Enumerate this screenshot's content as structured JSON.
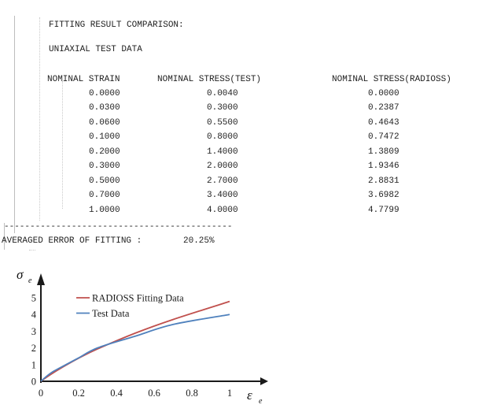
{
  "report": {
    "title": "FITTING RESULT COMPARISON:",
    "subtitle": "UNIAXIAL TEST DATA",
    "table": {
      "headers": [
        "NOMINAL STRAIN",
        "NOMINAL STRESS(TEST)",
        "NOMINAL STRESS(RADIOSS)"
      ],
      "rows": [
        [
          "0.0000",
          "0.0040",
          "0.0000"
        ],
        [
          "0.0300",
          "0.3000",
          "0.2387"
        ],
        [
          "0.0600",
          "0.5500",
          "0.4643"
        ],
        [
          "0.1000",
          "0.8000",
          "0.7472"
        ],
        [
          "0.2000",
          "1.4000",
          "1.3809"
        ],
        [
          "0.3000",
          "2.0000",
          "1.9346"
        ],
        [
          "0.5000",
          "2.7000",
          "2.8831"
        ],
        [
          "0.7000",
          "3.4000",
          "3.6982"
        ],
        [
          "1.0000",
          "4.0000",
          "4.7799"
        ]
      ]
    },
    "separator": "--------------------------------------------",
    "summary_label": "AVERAGED ERROR OF FITTING :",
    "summary_value": "20.25%"
  },
  "chart_data": {
    "type": "line",
    "title": "",
    "xlabel": "ε",
    "xlabel_sub": "e",
    "ylabel": "σ",
    "ylabel_sub": "e",
    "x": [
      0,
      0.03,
      0.06,
      0.1,
      0.2,
      0.3,
      0.5,
      0.7,
      1.0
    ],
    "series": [
      {
        "name": "RADIOSS Fitting Data",
        "color": "#c0504d",
        "values": [
          0.0,
          0.2387,
          0.4643,
          0.7472,
          1.3809,
          1.9346,
          2.8831,
          3.6982,
          4.7799
        ]
      },
      {
        "name": "Test Data",
        "color": "#4f81bd",
        "values": [
          0.004,
          0.3,
          0.55,
          0.8,
          1.4,
          2.0,
          2.7,
          3.4,
          4.0
        ]
      }
    ],
    "x_ticks": [
      "0",
      "0.2",
      "0.4",
      "0.6",
      "0.8",
      "1"
    ],
    "x_tick_values": [
      0,
      0.2,
      0.4,
      0.6,
      0.8,
      1
    ],
    "y_ticks": [
      "0",
      "1",
      "2",
      "3",
      "4",
      "5"
    ],
    "y_tick_values": [
      0,
      1,
      2,
      3,
      4,
      5
    ],
    "xlim": [
      0,
      1.2
    ],
    "ylim": [
      0,
      6
    ],
    "grid": false,
    "legend_position": "top-left-inside",
    "axis_color": "#1a1a1a"
  }
}
